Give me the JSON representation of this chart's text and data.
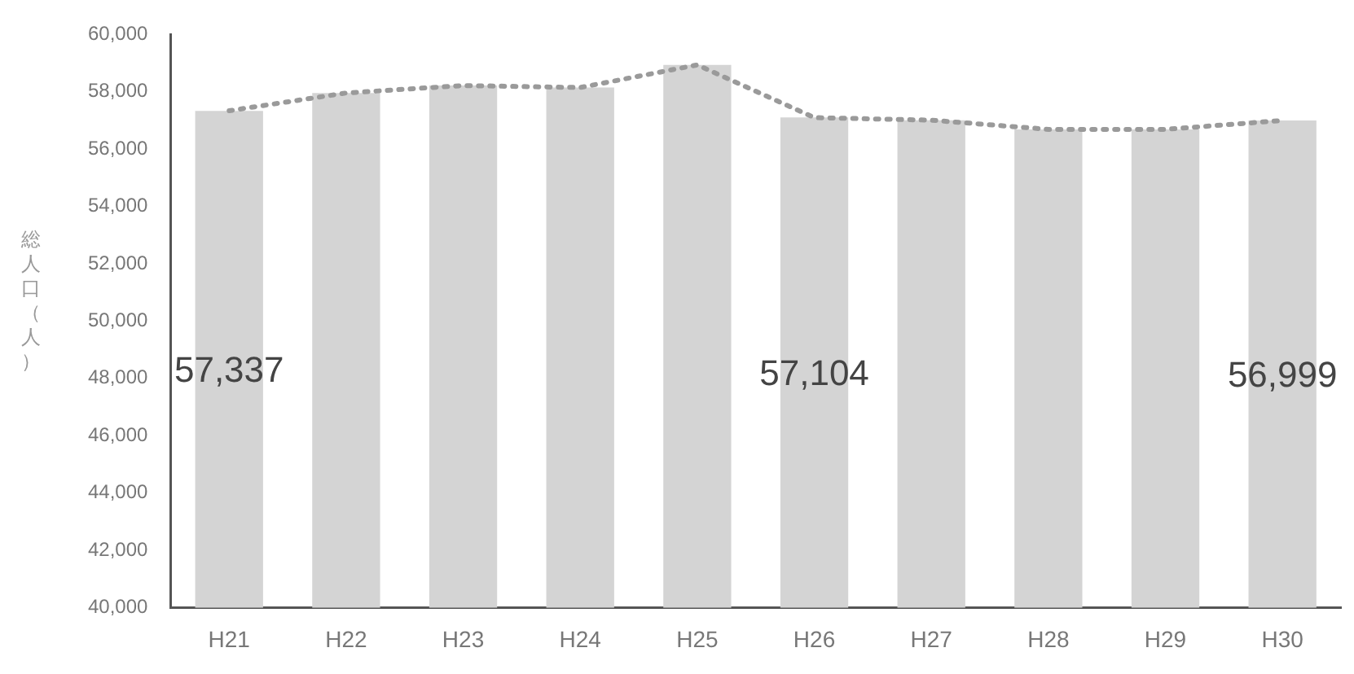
{
  "chart_data": {
    "type": "bar",
    "ylabel": "総人口（人）",
    "categories": [
      "H21",
      "H22",
      "H23",
      "H24",
      "H25",
      "H26",
      "H27",
      "H28",
      "H29",
      "H30"
    ],
    "series": [
      {
        "color": "#d4d4d4",
        "values": [
          57337,
          57960,
          58220,
          58150,
          58940,
          57104,
          57010,
          56690,
          56690,
          56999
        ],
        "value_labels": [
          "57,337",
          null,
          null,
          null,
          null,
          "57,104",
          null,
          null,
          null,
          "56,999"
        ]
      },
      {
        "type": "line",
        "color": "#9a9a9a",
        "line_style": "dotted",
        "marker": "none",
        "values": [
          57340,
          57960,
          58220,
          58150,
          58940,
          57100,
          57010,
          56690,
          56690,
          57000
        ]
      }
    ],
    "ylim": [
      40000,
      60000
    ],
    "yticks": [
      {
        "value": 40000,
        "label": "40,000"
      },
      {
        "value": 42000,
        "label": "42,000"
      },
      {
        "value": 44000,
        "label": "44,000"
      },
      {
        "value": 46000,
        "label": "46,000"
      },
      {
        "value": 48000,
        "label": "48,000"
      },
      {
        "value": 50000,
        "label": "50,000"
      },
      {
        "value": 52000,
        "label": "52,000"
      },
      {
        "value": 54000,
        "label": "54,000"
      },
      {
        "value": 56000,
        "label": "56,000"
      },
      {
        "value": 58000,
        "label": "58,000"
      },
      {
        "value": 60000,
        "label": "60,000"
      }
    ],
    "grid": false,
    "legend": false
  }
}
